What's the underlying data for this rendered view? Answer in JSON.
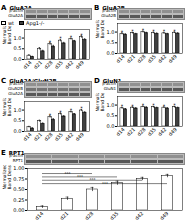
{
  "chart_data": [
    {
      "type": "bar",
      "title": "GluA2A",
      "annotations": [
        {
          "text": "A"
        },
        {
          "text": "GluA2A"
        },
        {
          "text": "β-actin"
        },
        {
          "text": "*",
          "x": "d28",
          "series": "wt"
        },
        {
          "text": "*",
          "x": "d35",
          "series": "wt"
        },
        {
          "text": "*",
          "x": "d42",
          "series": "wt"
        },
        {
          "text": "*",
          "x": "d49",
          "series": "wt"
        }
      ],
      "categories": [
        "d14",
        "d21",
        "d28",
        "d35",
        "d42",
        "d49"
      ],
      "series": [
        {
          "name": "wt",
          "color": "#ffffff",
          "values": [
            0.18,
            0.5,
            0.72,
            0.88,
            0.95,
            1.05
          ],
          "errors": [
            0.04,
            0.06,
            0.07,
            0.06,
            0.05,
            0.06
          ]
        },
        {
          "name": "Apg1-/-",
          "color": "#404040",
          "values": [
            0.12,
            0.38,
            0.6,
            0.75,
            0.85,
            0.92
          ],
          "errors": [
            0.03,
            0.05,
            0.06,
            0.05,
            0.04,
            0.05
          ]
        }
      ],
      "ylabel": "Normalized\nBand Density",
      "ylim": [
        0.0,
        1.4
      ],
      "yticks": [
        {
          "value": 0,
          "label": "0.0"
        },
        0.5,
        {
          "value": 1,
          "label": "1.0"
        }
      ],
      "legend": "upper left"
    },
    {
      "type": "bar",
      "title": "GluA2B",
      "annotations": [
        {
          "text": "B"
        },
        {
          "text": "GluA2B"
        },
        {
          "text": "β-actin"
        },
        {
          "text": "*",
          "x": "d14",
          "series": "wt"
        },
        {
          "text": "*",
          "x": "d21",
          "series": "wt"
        },
        {
          "text": "*",
          "x": "d28",
          "series": "wt"
        },
        {
          "text": "*",
          "x": "d35",
          "series": "wt"
        },
        {
          "text": "*",
          "x": "d42",
          "series": "wt"
        },
        {
          "text": "*",
          "x": "d49",
          "series": "wt"
        }
      ],
      "categories": [
        "d14",
        "d21",
        "d28",
        "d35",
        "d42",
        "d49"
      ],
      "series": [
        {
          "name": "wt",
          "color": "#ffffff",
          "values": [
            0.92,
            0.95,
            1.0,
            0.96,
            0.94,
            0.97
          ],
          "errors": [
            0.05,
            0.04,
            0.05,
            0.04,
            0.05,
            0.04
          ]
        },
        {
          "name": "Apg1-/-",
          "color": "#404040",
          "values": [
            0.88,
            0.9,
            0.95,
            0.92,
            0.9,
            0.93
          ],
          "errors": [
            0.04,
            0.04,
            0.04,
            0.04,
            0.04,
            0.04
          ]
        }
      ],
      "ylabel": "Normalized\nBand Density",
      "ylim": [
        0.0,
        1.4
      ],
      "yticks": [
        {
          "value": 0,
          "label": "0.0"
        },
        0.5,
        {
          "value": 1,
          "label": "1.0"
        }
      ]
    },
    {
      "type": "bar",
      "title": "GluA2A/GluN2B",
      "annotations": [
        {
          "text": "C"
        },
        {
          "text": "GluA2A"
        },
        {
          "text": "GluN2B"
        },
        {
          "text": "β-actin"
        },
        {
          "text": "*",
          "x": "d28",
          "series": "wt"
        },
        {
          "text": "*",
          "x": "d35",
          "series": "wt"
        },
        {
          "text": "*",
          "x": "d42",
          "series": "wt"
        },
        {
          "text": "*",
          "x": "d49",
          "series": "wt"
        }
      ],
      "categories": [
        "d14",
        "d21",
        "d28",
        "d35",
        "d42",
        "d49"
      ],
      "series": [
        {
          "name": "wt",
          "color": "#ffffff",
          "values": [
            0.2,
            0.48,
            0.68,
            0.82,
            0.9,
            0.98
          ],
          "errors": [
            0.04,
            0.05,
            0.06,
            0.05,
            0.05,
            0.05
          ]
        },
        {
          "name": "Apg1-/-",
          "color": "#404040",
          "values": [
            0.14,
            0.36,
            0.55,
            0.7,
            0.8,
            0.88
          ],
          "errors": [
            0.03,
            0.04,
            0.05,
            0.04,
            0.04,
            0.04
          ]
        }
      ],
      "ylabel": "Normalized\nBand Density",
      "ylim": [
        0.0,
        1.4
      ],
      "yticks": [
        {
          "value": 0,
          "label": "0.0"
        },
        0.5,
        {
          "value": 1,
          "label": "1.0"
        }
      ]
    },
    {
      "type": "bar",
      "title": "GluN1",
      "annotations": [
        {
          "text": "D"
        },
        {
          "text": "GluN1"
        },
        {
          "text": "β-actin"
        },
        {
          "text": "*",
          "x": "d14",
          "series": "wt"
        },
        {
          "text": "*",
          "x": "d21",
          "series": "wt"
        },
        {
          "text": "*",
          "x": "d28",
          "series": "wt"
        },
        {
          "text": "*",
          "x": "d35",
          "series": "wt"
        },
        {
          "text": "*",
          "x": "d42",
          "series": "wt"
        },
        {
          "text": "*",
          "x": "d49",
          "series": "wt"
        }
      ],
      "categories": [
        "d14",
        "d21",
        "d28",
        "d35",
        "d42",
        "d49"
      ],
      "series": [
        {
          "name": "wt",
          "color": "#ffffff",
          "values": [
            0.85,
            0.88,
            0.92,
            0.9,
            0.88,
            0.9
          ],
          "errors": [
            0.05,
            0.04,
            0.04,
            0.04,
            0.04,
            0.04
          ]
        },
        {
          "name": "Apg1-/-",
          "color": "#404040",
          "values": [
            0.8,
            0.84,
            0.88,
            0.86,
            0.84,
            0.86
          ],
          "errors": [
            0.04,
            0.04,
            0.04,
            0.04,
            0.04,
            0.04
          ]
        }
      ],
      "ylabel": "Normalized\nBand Density",
      "ylim": [
        0.0,
        1.4
      ],
      "yticks": [
        {
          "value": 0,
          "label": "0.0"
        },
        0.5,
        {
          "value": 1,
          "label": "1.0"
        }
      ]
    },
    {
      "type": "bar",
      "title": "RPT1",
      "annotations": [
        {
          "text": "E"
        },
        {
          "text": "RPT1"
        },
        {
          "text": "β-actin"
        },
        {
          "text": "***",
          "x1": "d14",
          "x2": "d28",
          "y": 0.88
        },
        {
          "text": "***",
          "x1": "d14",
          "x2": "d35",
          "y": 0.8
        },
        {
          "text": "***",
          "x1": "d14",
          "x2": "d42",
          "y": 0.72
        },
        {
          "text": "***",
          "x1": "d14",
          "x2": "d49",
          "y": 0.64
        }
      ],
      "categories": [
        "d14",
        "d21",
        "d28",
        "d35",
        "d42",
        "d49"
      ],
      "values": [
        0.08,
        0.28,
        0.5,
        0.65,
        0.75,
        0.82
      ],
      "errors": [
        0.03,
        0.04,
        0.05,
        0.05,
        0.04,
        0.04
      ],
      "color": "#ffffff",
      "ylabel": "Normalized\nBand Density",
      "ylim": [
        0.0,
        1.0
      ],
      "yticks": [
        {
          "value": 0,
          "label": "0.00"
        },
        0.25,
        {
          "value": 0.5,
          "label": "0.50"
        },
        0.75,
        {
          "value": 1,
          "label": "1.00"
        }
      ]
    }
  ]
}
